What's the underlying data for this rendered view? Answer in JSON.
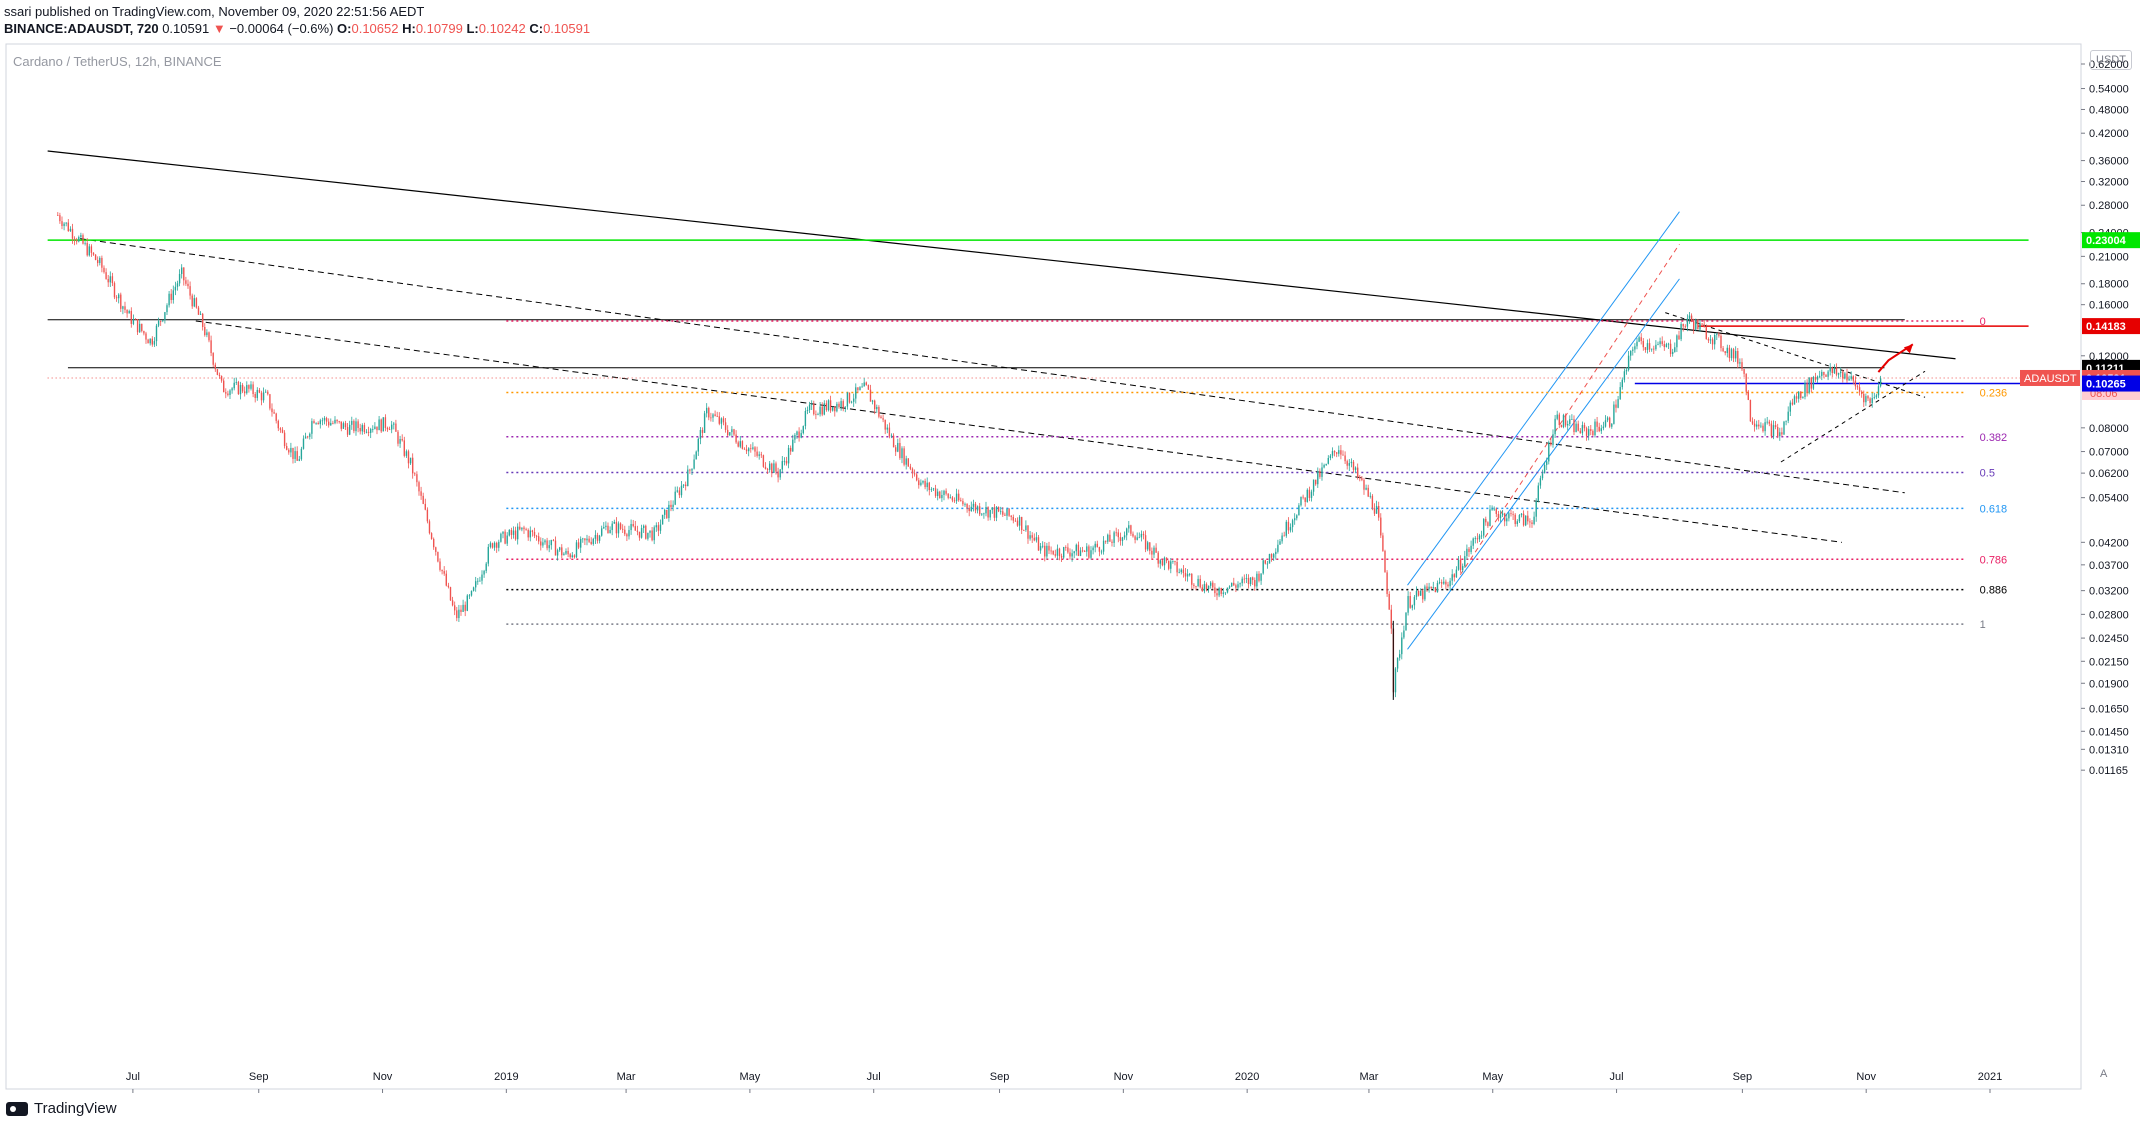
{
  "header": {
    "line1": "ssari published on TradingView.com, November 09, 2020 22:51:56 AEDT",
    "symbol": "BINANCE:ADAUSDT, 720",
    "last": "0.10591",
    "change_arrow": "▼",
    "change": "−0.00064 (−0.6%)",
    "o_label": "O:",
    "o": "0.10652",
    "h_label": "H:",
    "h": "0.10799",
    "l_label": "L:",
    "l": "0.10242",
    "c_label": "C:",
    "c": "0.10591"
  },
  "symbol_description": "Cardano / TetherUS, 12h, BINANCE",
  "currency_button": "USDT",
  "auto_button": "A",
  "brand": "TradingView",
  "colors": {
    "up": "#26a69a",
    "down": "#ef5350",
    "ink": "#000000",
    "green_level": "#00e600",
    "red_level": "#e60000",
    "blue_level": "#0000e6",
    "channel": "#2196f3",
    "fib_orange": "#ff9800",
    "fib_purple": "#673ab7",
    "fib_blue": "#2196f3",
    "fib_pink": "#e91e63"
  },
  "chart_data": {
    "type": "candlestick",
    "title": "Cardano / TetherUS, 12h, BINANCE",
    "log_scale": true,
    "grid": false,
    "x_ticks": [
      "Jul",
      "Sep",
      "Nov",
      "2019",
      "Mar",
      "May",
      "Jul",
      "Sep",
      "Nov",
      "2020",
      "Mar",
      "May",
      "Jul",
      "Sep",
      "Nov",
      "2021"
    ],
    "y_ticks": [
      "0.62000",
      "0.54000",
      "0.48000",
      "0.42000",
      "0.36000",
      "0.32000",
      "0.28000",
      "0.24000",
      "0.21000",
      "0.18000",
      "0.16000",
      "0.12000",
      "0.08000",
      "0.07000",
      "0.06200",
      "0.05400",
      "0.04200",
      "0.03700",
      "0.03200",
      "0.02800",
      "0.02450",
      "0.02150",
      "0.01900",
      "0.01650",
      "0.01450",
      "0.01310",
      "0.01165"
    ],
    "y_range": [
      0.0115,
      0.72
    ],
    "price_path": [
      {
        "date": "2018-05-25",
        "price": 0.265
      },
      {
        "date": "2018-06-08",
        "price": 0.22
      },
      {
        "date": "2018-06-15",
        "price": 0.2
      },
      {
        "date": "2018-06-29",
        "price": 0.15
      },
      {
        "date": "2018-07-10",
        "price": 0.13
      },
      {
        "date": "2018-07-20",
        "price": 0.17
      },
      {
        "date": "2018-07-25",
        "price": 0.19
      },
      {
        "date": "2018-08-05",
        "price": 0.14
      },
      {
        "date": "2018-08-14",
        "price": 0.1
      },
      {
        "date": "2018-08-25",
        "price": 0.1
      },
      {
        "date": "2018-09-05",
        "price": 0.095
      },
      {
        "date": "2018-09-12",
        "price": 0.078
      },
      {
        "date": "2018-09-20",
        "price": 0.066
      },
      {
        "date": "2018-09-28",
        "price": 0.085
      },
      {
        "date": "2018-10-15",
        "price": 0.08
      },
      {
        "date": "2018-11-05",
        "price": 0.082
      },
      {
        "date": "2018-11-15",
        "price": 0.065
      },
      {
        "date": "2018-11-25",
        "price": 0.044
      },
      {
        "date": "2018-12-07",
        "price": 0.0275
      },
      {
        "date": "2018-12-15",
        "price": 0.031
      },
      {
        "date": "2018-12-25",
        "price": 0.042
      },
      {
        "date": "2019-01-10",
        "price": 0.045
      },
      {
        "date": "2019-01-31",
        "price": 0.039
      },
      {
        "date": "2019-02-20",
        "price": 0.046
      },
      {
        "date": "2019-03-15",
        "price": 0.044
      },
      {
        "date": "2019-04-01",
        "price": 0.062
      },
      {
        "date": "2019-04-10",
        "price": 0.088
      },
      {
        "date": "2019-04-25",
        "price": 0.075
      },
      {
        "date": "2019-05-15",
        "price": 0.062
      },
      {
        "date": "2019-05-30",
        "price": 0.088
      },
      {
        "date": "2019-06-15",
        "price": 0.092
      },
      {
        "date": "2019-06-27",
        "price": 0.1
      },
      {
        "date": "2019-07-10",
        "price": 0.075
      },
      {
        "date": "2019-07-25",
        "price": 0.058
      },
      {
        "date": "2019-08-15",
        "price": 0.052
      },
      {
        "date": "2019-09-10",
        "price": 0.048
      },
      {
        "date": "2019-09-22",
        "price": 0.04
      },
      {
        "date": "2019-10-15",
        "price": 0.04
      },
      {
        "date": "2019-11-05",
        "price": 0.045
      },
      {
        "date": "2019-11-20",
        "price": 0.038
      },
      {
        "date": "2019-12-15",
        "price": 0.032
      },
      {
        "date": "2020-01-05",
        "price": 0.034
      },
      {
        "date": "2020-01-25",
        "price": 0.05
      },
      {
        "date": "2020-02-15",
        "price": 0.072
      },
      {
        "date": "2020-02-25",
        "price": 0.06
      },
      {
        "date": "2020-03-05",
        "price": 0.05
      },
      {
        "date": "2020-03-12",
        "price": 0.027
      },
      {
        "date": "2020-03-13",
        "price": 0.0185
      },
      {
        "date": "2020-03-20",
        "price": 0.03
      },
      {
        "date": "2020-04-10",
        "price": 0.034
      },
      {
        "date": "2020-05-01",
        "price": 0.05
      },
      {
        "date": "2020-05-20",
        "price": 0.047
      },
      {
        "date": "2020-06-01",
        "price": 0.085
      },
      {
        "date": "2020-06-15",
        "price": 0.078
      },
      {
        "date": "2020-06-28",
        "price": 0.083
      },
      {
        "date": "2020-07-10",
        "price": 0.13
      },
      {
        "date": "2020-07-28",
        "price": 0.125
      },
      {
        "date": "2020-08-05",
        "price": 0.148
      },
      {
        "date": "2020-08-20",
        "price": 0.13
      },
      {
        "date": "2020-09-01",
        "price": 0.115
      },
      {
        "date": "2020-09-05",
        "price": 0.085
      },
      {
        "date": "2020-09-20",
        "price": 0.077
      },
      {
        "date": "2020-09-25",
        "price": 0.092
      },
      {
        "date": "2020-10-10",
        "price": 0.11
      },
      {
        "date": "2020-10-22",
        "price": 0.108
      },
      {
        "date": "2020-11-03",
        "price": 0.092
      },
      {
        "date": "2020-11-09",
        "price": 0.1059
      }
    ],
    "horizontal_levels": [
      {
        "value": 0.23004,
        "label": "0.23004",
        "color": "#00e600"
      },
      {
        "value": 0.14183,
        "label": "0.14183",
        "color": "#e60000"
      },
      {
        "value": 0.11211,
        "label": "0.11211",
        "color": "#000000"
      },
      {
        "value": 0.10591,
        "label": "0.10591",
        "name": "ADAUSDT",
        "countdown": "08:06",
        "color": "#ef5350"
      },
      {
        "value": 0.10265,
        "label": "0.10265",
        "color": "#0000e6"
      }
    ],
    "fibonacci_retracement": {
      "high": 0.146,
      "low": 0.0265,
      "levels": [
        {
          "ratio": "0",
          "color": "#e91e63"
        },
        {
          "ratio": "0.236",
          "color": "#ff9800"
        },
        {
          "ratio": "0.382",
          "color": "#9c27b0"
        },
        {
          "ratio": "0.5",
          "color": "#673ab7"
        },
        {
          "ratio": "0.618",
          "color": "#2196f3"
        },
        {
          "ratio": "0.786",
          "color": "#e91e63"
        },
        {
          "ratio": "0.886",
          "color": "#000000"
        },
        {
          "ratio": "1",
          "color": "#787b86"
        }
      ]
    }
  }
}
